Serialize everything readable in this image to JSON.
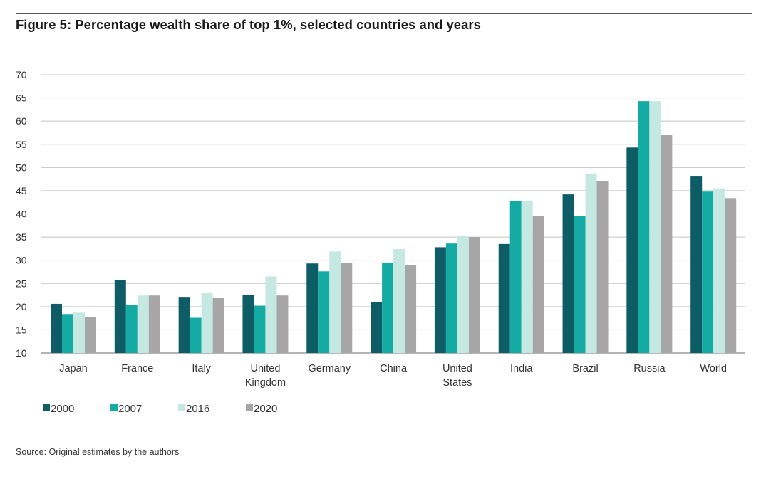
{
  "figure": {
    "title": "Figure 5: Percentage wealth share of top 1%, selected countries and years",
    "source": "Source: Original estimates by the authors"
  },
  "chart_data": {
    "type": "bar",
    "title": "Figure 5: Percentage wealth share of top 1%, selected countries and years",
    "xlabel": "",
    "ylabel": "",
    "ylim": [
      10,
      70
    ],
    "yticks": [
      10,
      15,
      20,
      25,
      30,
      35,
      40,
      45,
      50,
      55,
      60,
      65,
      70
    ],
    "grid": true,
    "legend_position": "bottom-left",
    "categories": [
      "Japan",
      "France",
      "Italy",
      "United Kingdom",
      "Germany",
      "China",
      "United States",
      "India",
      "Brazil",
      "Russia",
      "World"
    ],
    "category_lines": [
      [
        "Japan"
      ],
      [
        "France"
      ],
      [
        "Italy"
      ],
      [
        "United",
        "Kingdom"
      ],
      [
        "Germany"
      ],
      [
        "China"
      ],
      [
        "United",
        "States"
      ],
      [
        "India"
      ],
      [
        "Brazil"
      ],
      [
        "Russia"
      ],
      [
        "World"
      ]
    ],
    "series": [
      {
        "name": "2000",
        "color": "#0e5c66",
        "values": [
          20.6,
          25.8,
          22.1,
          22.5,
          29.3,
          20.9,
          32.8,
          33.5,
          44.2,
          54.3,
          48.2
        ]
      },
      {
        "name": "2007",
        "color": "#14aba5",
        "values": [
          18.4,
          20.3,
          17.6,
          20.2,
          27.6,
          29.5,
          33.6,
          42.7,
          39.5,
          64.3,
          44.8
        ]
      },
      {
        "name": "2016",
        "color": "#c6e8e3",
        "values": [
          18.7,
          22.4,
          23.0,
          26.5,
          31.9,
          32.4,
          35.3,
          42.8,
          48.7,
          64.3,
          45.5
        ]
      },
      {
        "name": "2020",
        "color": "#a6a6a6",
        "values": [
          17.8,
          22.4,
          21.9,
          22.4,
          29.4,
          29.0,
          35.0,
          39.5,
          47.0,
          57.1,
          43.4
        ]
      }
    ]
  }
}
